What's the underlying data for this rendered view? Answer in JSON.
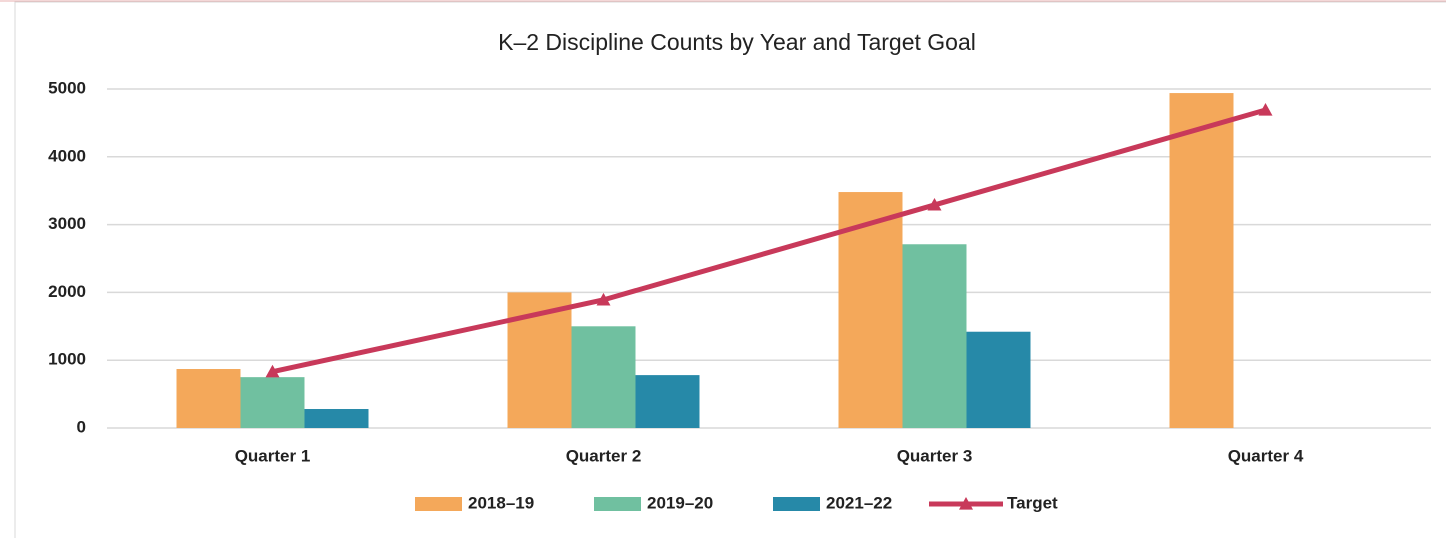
{
  "chart_data": {
    "type": "bar",
    "title": "K–2 Discipline Counts by Year and Target Goal",
    "categories": [
      "Quarter 1",
      "Quarter 2",
      "Quarter 3",
      "Quarter 4"
    ],
    "series": [
      {
        "name": "2018–19",
        "color": "#f4a85a",
        "values": [
          870,
          2000,
          3480,
          4940
        ]
      },
      {
        "name": "2019–20",
        "color": "#70c0a0",
        "values": [
          750,
          1500,
          2710,
          null
        ]
      },
      {
        "name": "2021–22",
        "color": "#2689a8",
        "values": [
          280,
          780,
          1420,
          null
        ]
      },
      {
        "name": "Target",
        "color": "#c8395a",
        "type": "line",
        "values": [
          830,
          1890,
          3290,
          4690
        ]
      }
    ],
    "ylim": [
      0,
      5000
    ],
    "yticks": [
      0,
      1000,
      2000,
      3000,
      4000,
      5000
    ],
    "grid": true,
    "legend": "bottom"
  }
}
